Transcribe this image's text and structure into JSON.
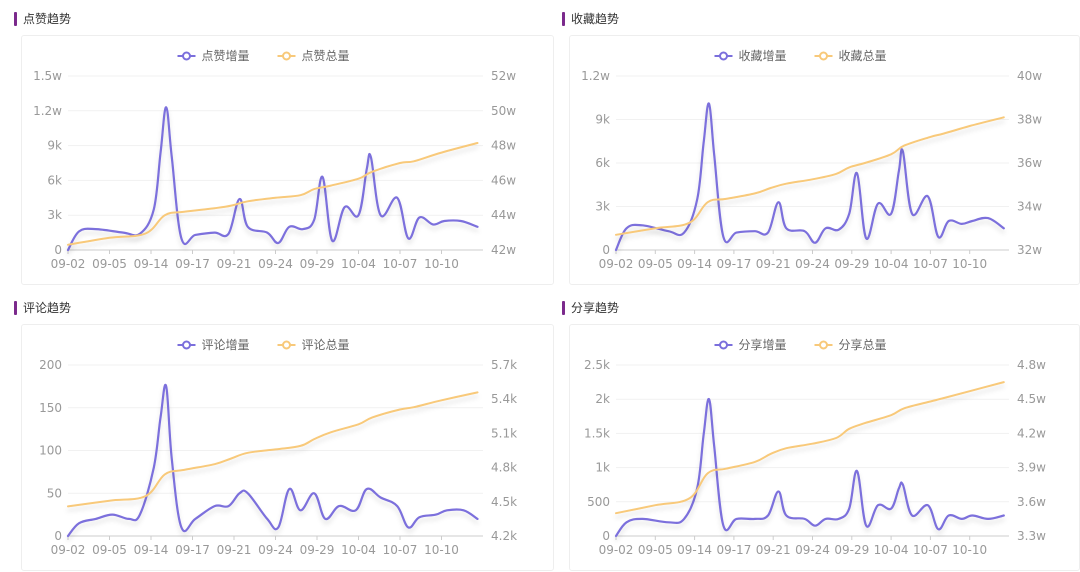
{
  "colors": {
    "accent": "#7b2a8c",
    "increment": "#7b6fdc",
    "total": "#f8c97a",
    "axis": "#999999",
    "grid": "#f1f1f1"
  },
  "panels": [
    {
      "title": "点赞趋势"
    },
    {
      "title": "收藏趋势"
    },
    {
      "title": "评论趋势"
    },
    {
      "title": "分享趋势"
    }
  ],
  "chart_data": [
    {
      "type": "line",
      "x": [
        "09-02",
        "09-05",
        "09-14",
        "09-17",
        "09-21",
        "09-24",
        "09-29",
        "10-04",
        "10-07",
        "10-10"
      ],
      "left_ticks": [
        "0",
        "3k",
        "6k",
        "9k",
        "1.2w",
        "1.5w"
      ],
      "right_ticks": [
        "42w",
        "44w",
        "46w",
        "48w",
        "50w",
        "52w"
      ],
      "ylim_left": [
        0,
        15000
      ],
      "ylim_right": [
        420000,
        520000
      ],
      "series": [
        {
          "name": "点赞增量",
          "axis": "left",
          "points": [
            [
              0,
              0
            ],
            [
              0.4,
              1600
            ],
            [
              1,
              1800
            ],
            [
              2,
              1500
            ],
            [
              2.6,
              1400
            ],
            [
              3.1,
              3500
            ],
            [
              3.35,
              8500
            ],
            [
              3.55,
              12300
            ],
            [
              3.75,
              8000
            ],
            [
              4.1,
              1000
            ],
            [
              4.6,
              1300
            ],
            [
              5.3,
              1500
            ],
            [
              5.8,
              1400
            ],
            [
              6.2,
              4400
            ],
            [
              6.5,
              2000
            ],
            [
              7.2,
              1500
            ],
            [
              7.6,
              600
            ],
            [
              8,
              2000
            ],
            [
              8.5,
              1800
            ],
            [
              8.9,
              2600
            ],
            [
              9.2,
              6300
            ],
            [
              9.55,
              800
            ],
            [
              10,
              3700
            ],
            [
              10.5,
              3000
            ],
            [
              10.8,
              7000
            ],
            [
              10.95,
              8000
            ],
            [
              11.3,
              3000
            ],
            [
              11.9,
              4500
            ],
            [
              12.3,
              1000
            ],
            [
              12.7,
              2800
            ],
            [
              13.2,
              2200
            ],
            [
              13.6,
              2500
            ],
            [
              14.2,
              2500
            ],
            [
              14.8,
              2000
            ]
          ]
        },
        {
          "name": "点赞总量",
          "axis": "right",
          "points": [
            [
              0,
              423000
            ],
            [
              1.5,
              427000
            ],
            [
              2.8,
              429500
            ],
            [
              3.5,
              440000
            ],
            [
              4.2,
              442000
            ],
            [
              5.3,
              444000
            ],
            [
              5.9,
              445500
            ],
            [
              6.5,
              448000
            ],
            [
              7.5,
              450000
            ],
            [
              8.4,
              451500
            ],
            [
              8.9,
              455000
            ],
            [
              9.5,
              457000
            ],
            [
              10.5,
              461000
            ],
            [
              11,
              465000
            ],
            [
              12,
              470000
            ],
            [
              12.5,
              471000
            ],
            [
              13.5,
              476000
            ],
            [
              14.8,
              481500
            ]
          ]
        }
      ]
    },
    {
      "type": "line",
      "x": [
        "09-02",
        "09-05",
        "09-14",
        "09-17",
        "09-21",
        "09-24",
        "09-29",
        "10-04",
        "10-07",
        "10-10"
      ],
      "left_ticks": [
        "0",
        "3k",
        "6k",
        "9k",
        "1.2w"
      ],
      "right_ticks": [
        "32w",
        "34w",
        "36w",
        "38w",
        "40w"
      ],
      "ylim_left": [
        0,
        12000
      ],
      "ylim_right": [
        320000,
        400000
      ],
      "series": [
        {
          "name": "收藏增量",
          "axis": "left",
          "points": [
            [
              0,
              0
            ],
            [
              0.4,
              1500
            ],
            [
              1,
              1700
            ],
            [
              2,
              1300
            ],
            [
              2.6,
              1200
            ],
            [
              3.1,
              3500
            ],
            [
              3.35,
              7500
            ],
            [
              3.55,
              10100
            ],
            [
              3.75,
              6500
            ],
            [
              4.1,
              900
            ],
            [
              4.6,
              1200
            ],
            [
              5.3,
              1300
            ],
            [
              5.8,
              1200
            ],
            [
              6.2,
              3300
            ],
            [
              6.5,
              1500
            ],
            [
              7.2,
              1300
            ],
            [
              7.6,
              500
            ],
            [
              8,
              1500
            ],
            [
              8.5,
              1400
            ],
            [
              8.9,
              2500
            ],
            [
              9.2,
              5300
            ],
            [
              9.55,
              800
            ],
            [
              10,
              3200
            ],
            [
              10.5,
              2500
            ],
            [
              10.8,
              5500
            ],
            [
              10.95,
              6800
            ],
            [
              11.3,
              2500
            ],
            [
              11.9,
              3700
            ],
            [
              12.3,
              900
            ],
            [
              12.7,
              2000
            ],
            [
              13.2,
              1800
            ],
            [
              13.6,
              2000
            ],
            [
              14.2,
              2200
            ],
            [
              14.8,
              1500
            ]
          ]
        },
        {
          "name": "收藏总量",
          "axis": "right",
          "points": [
            [
              0,
              327000
            ],
            [
              1.5,
              330000
            ],
            [
              2.8,
              332500
            ],
            [
              3.5,
              342000
            ],
            [
              4.2,
              343500
            ],
            [
              5.3,
              346000
            ],
            [
              5.9,
              348500
            ],
            [
              6.5,
              350500
            ],
            [
              7.5,
              352500
            ],
            [
              8.4,
              355000
            ],
            [
              8.9,
              358000
            ],
            [
              9.5,
              360000
            ],
            [
              10.5,
              364000
            ],
            [
              11,
              368000
            ],
            [
              12,
              372000
            ],
            [
              12.5,
              373500
            ],
            [
              13.5,
              377000
            ],
            [
              14.8,
              381000
            ]
          ]
        }
      ]
    },
    {
      "type": "line",
      "x": [
        "09-02",
        "09-05",
        "09-14",
        "09-17",
        "09-21",
        "09-24",
        "09-29",
        "10-04",
        "10-07",
        "10-10"
      ],
      "left_ticks": [
        "0",
        "50",
        "100",
        "150",
        "200"
      ],
      "right_ticks": [
        "4.2k",
        "4.5k",
        "4.8k",
        "5.1k",
        "5.4k",
        "5.7k"
      ],
      "ylim_left": [
        0,
        200
      ],
      "ylim_right": [
        4200,
        5700
      ],
      "series": [
        {
          "name": "评论增量",
          "axis": "left",
          "points": [
            [
              0,
              0
            ],
            [
              0.4,
              15
            ],
            [
              1,
              20
            ],
            [
              1.6,
              25
            ],
            [
              2.2,
              20
            ],
            [
              2.6,
              25
            ],
            [
              3.1,
              80
            ],
            [
              3.35,
              140
            ],
            [
              3.55,
              175
            ],
            [
              3.75,
              90
            ],
            [
              4.1,
              10
            ],
            [
              4.6,
              20
            ],
            [
              5.3,
              35
            ],
            [
              5.8,
              35
            ],
            [
              6.2,
              50
            ],
            [
              6.5,
              50
            ],
            [
              7.2,
              20
            ],
            [
              7.6,
              10
            ],
            [
              8,
              55
            ],
            [
              8.4,
              30
            ],
            [
              8.9,
              50
            ],
            [
              9.3,
              20
            ],
            [
              9.8,
              35
            ],
            [
              10.4,
              30
            ],
            [
              10.8,
              55
            ],
            [
              11.3,
              45
            ],
            [
              11.9,
              35
            ],
            [
              12.3,
              10
            ],
            [
              12.7,
              22
            ],
            [
              13.3,
              25
            ],
            [
              13.7,
              30
            ],
            [
              14.3,
              30
            ],
            [
              14.8,
              20
            ]
          ]
        },
        {
          "name": "评论总量",
          "axis": "right",
          "points": [
            [
              0,
              4460
            ],
            [
              1.5,
              4510
            ],
            [
              2.8,
              4550
            ],
            [
              3.5,
              4740
            ],
            [
              4.2,
              4780
            ],
            [
              5.3,
              4830
            ],
            [
              5.9,
              4880
            ],
            [
              6.5,
              4930
            ],
            [
              7.5,
              4960
            ],
            [
              8.4,
              4990
            ],
            [
              8.9,
              5050
            ],
            [
              9.5,
              5110
            ],
            [
              10.5,
              5180
            ],
            [
              11,
              5240
            ],
            [
              12,
              5310
            ],
            [
              12.5,
              5330
            ],
            [
              13.5,
              5390
            ],
            [
              14.8,
              5460
            ]
          ]
        }
      ]
    },
    {
      "type": "line",
      "x": [
        "09-02",
        "09-05",
        "09-14",
        "09-17",
        "09-21",
        "09-24",
        "09-29",
        "10-04",
        "10-07",
        "10-10"
      ],
      "left_ticks": [
        "0",
        "500",
        "1k",
        "1.5k",
        "2k",
        "2.5k"
      ],
      "right_ticks": [
        "3.3w",
        "3.6w",
        "3.9w",
        "4.2w",
        "4.5w",
        "4.8w"
      ],
      "ylim_left": [
        0,
        2500
      ],
      "ylim_right": [
        33000,
        48000
      ],
      "series": [
        {
          "name": "分享增量",
          "axis": "left",
          "points": [
            [
              0,
              0
            ],
            [
              0.4,
              200
            ],
            [
              1,
              250
            ],
            [
              2,
              200
            ],
            [
              2.6,
              250
            ],
            [
              3.1,
              700
            ],
            [
              3.35,
              1500
            ],
            [
              3.55,
              2000
            ],
            [
              3.75,
              1300
            ],
            [
              4.1,
              150
            ],
            [
              4.6,
              250
            ],
            [
              5.3,
              250
            ],
            [
              5.8,
              300
            ],
            [
              6.2,
              650
            ],
            [
              6.5,
              300
            ],
            [
              7.2,
              250
            ],
            [
              7.6,
              150
            ],
            [
              8,
              250
            ],
            [
              8.5,
              250
            ],
            [
              8.9,
              400
            ],
            [
              9.2,
              950
            ],
            [
              9.55,
              150
            ],
            [
              10,
              450
            ],
            [
              10.5,
              400
            ],
            [
              10.8,
              700
            ],
            [
              10.95,
              750
            ],
            [
              11.3,
              300
            ],
            [
              11.9,
              450
            ],
            [
              12.3,
              100
            ],
            [
              12.7,
              300
            ],
            [
              13.2,
              250
            ],
            [
              13.6,
              300
            ],
            [
              14.2,
              250
            ],
            [
              14.8,
              300
            ]
          ]
        },
        {
          "name": "分享总量",
          "axis": "right",
          "points": [
            [
              0,
              35000
            ],
            [
              1.5,
              35700
            ],
            [
              2.8,
              36300
            ],
            [
              3.5,
              38500
            ],
            [
              4.2,
              38900
            ],
            [
              5.3,
              39500
            ],
            [
              5.9,
              40200
            ],
            [
              6.5,
              40700
            ],
            [
              7.5,
              41100
            ],
            [
              8.4,
              41600
            ],
            [
              8.9,
              42400
            ],
            [
              9.5,
              42900
            ],
            [
              10.5,
              43600
            ],
            [
              11,
              44200
            ],
            [
              12,
              44800
            ],
            [
              12.5,
              45100
            ],
            [
              13.5,
              45700
            ],
            [
              14.8,
              46500
            ]
          ]
        }
      ]
    }
  ]
}
